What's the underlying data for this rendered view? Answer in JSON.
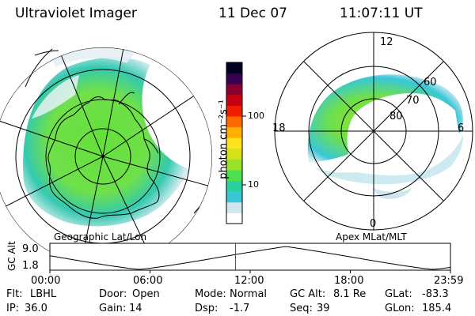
{
  "header": {
    "instrument": "Ultraviolet Imager",
    "date": "11 Dec 07",
    "time": "11:07:11 UT"
  },
  "left_panel": {
    "caption": "Geographic Lat/Lon",
    "view": "south-polar geographic projection with continent outline"
  },
  "right_panel": {
    "caption": "Apex MLat/MLT",
    "mlt_labels": [
      "12",
      "18",
      "6",
      "0"
    ],
    "mlat_labels": [
      "60",
      "70",
      "80"
    ]
  },
  "colorbar": {
    "label": "photon cm⁻²s⁻¹",
    "scale": "log",
    "ticks": [
      "100",
      "10"
    ],
    "colors": [
      "#ffffff",
      "#cfe6ee",
      "#39c7d8",
      "#29d1a0",
      "#4fe04f",
      "#9ae22a",
      "#d7e21b",
      "#ffe21d",
      "#ffb000",
      "#ff6a00",
      "#f01e00",
      "#c60010",
      "#8a0030",
      "#3a0050",
      "#000020"
    ]
  },
  "altitude_plot": {
    "ylabel": "GC Alt",
    "yticks": [
      "9.0",
      "1.8"
    ],
    "xticks": [
      "00:00",
      "06:00",
      "12:00",
      "18:00",
      "23:59"
    ],
    "marker_hour": 11.12,
    "marker_color": "#ff0000"
  },
  "info": {
    "row1": [
      {
        "label": "Flt:",
        "value": "LBHL"
      },
      {
        "label": "Door:",
        "value": "Open"
      },
      {
        "label": "Mode:",
        "value": "Normal"
      },
      {
        "label": "GC Alt:",
        "value": "8.1 Re"
      },
      {
        "label": "GLat:",
        "value": "-83.3"
      }
    ],
    "row2": [
      {
        "label": "IP:",
        "value": "36.0"
      },
      {
        "label": "Gain:",
        "value": "14"
      },
      {
        "label": "Dsp:",
        "value": "-1.7"
      },
      {
        "label": "Seq:",
        "value": "39"
      },
      {
        "label": "GLon:",
        "value": "185.4"
      }
    ]
  }
}
